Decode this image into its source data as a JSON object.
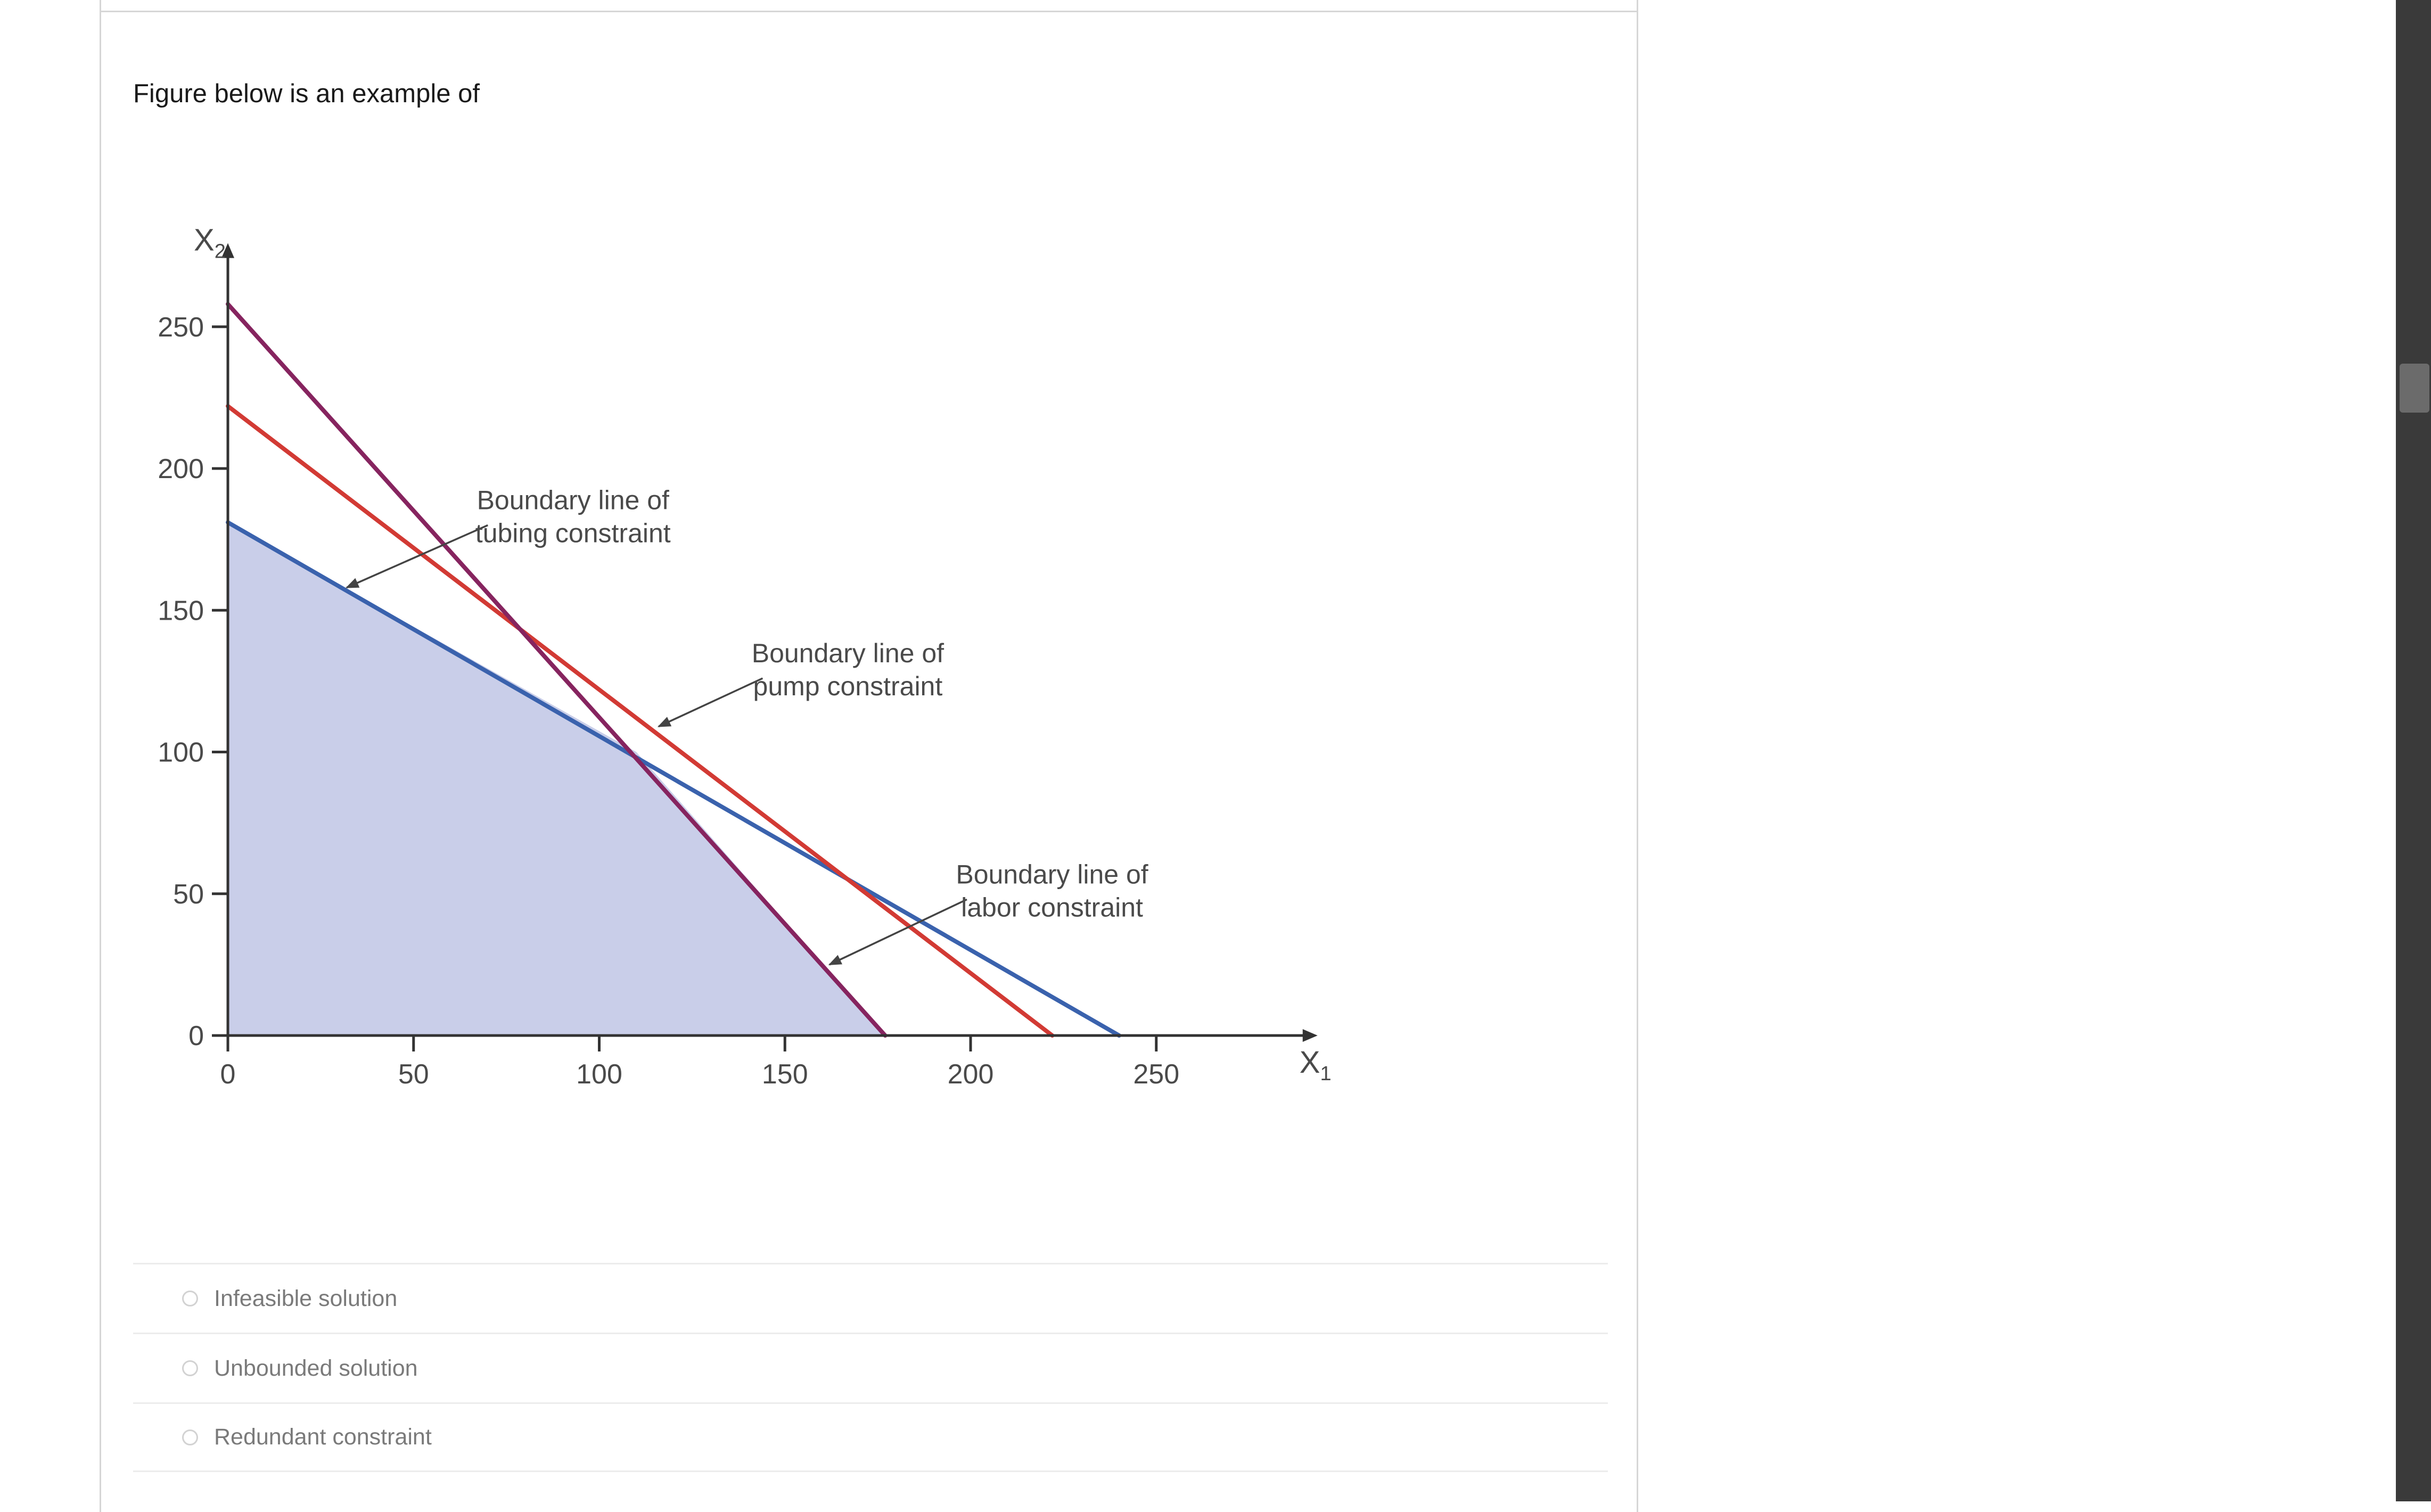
{
  "question": {
    "text": "Figure below is an example of"
  },
  "chart_data": {
    "type": "line",
    "xlabel": "X",
    "xlabel_sub": "1",
    "ylabel": "X",
    "ylabel_sub": "2",
    "xlim": [
      0,
      290
    ],
    "ylim": [
      0,
      275
    ],
    "x_ticks": [
      0,
      50,
      100,
      150,
      200,
      250
    ],
    "y_ticks": [
      0,
      50,
      100,
      150,
      200,
      250
    ],
    "grid": false,
    "legend": "none",
    "series": [
      {
        "label_line1": "Boundary line of",
        "label_line2": "tubing constraint",
        "color": "#3a62ad",
        "x": [
          0,
          240
        ],
        "y": [
          181,
          0
        ]
      },
      {
        "label_line1": "Boundary line of",
        "label_line2": "pump constraint",
        "color": "#d23a34",
        "x": [
          0,
          222
        ],
        "y": [
          222,
          0
        ]
      },
      {
        "label_line1": "Boundary line of",
        "label_line2": "labor constraint",
        "color": "#86245f",
        "x": [
          0,
          177
        ],
        "y": [
          258,
          0
        ]
      }
    ],
    "feasible_region": {
      "color": "#c9cee9",
      "x": [
        0,
        0,
        110,
        177
      ],
      "y": [
        0,
        181,
        100,
        0
      ]
    },
    "annotation_points": [
      {
        "x": [
          32,
          70
        ],
        "y": [
          158,
          180
        ]
      },
      {
        "x": [
          116,
          144
        ],
        "y": [
          109,
          126
        ]
      },
      {
        "x": [
          162,
          199
        ],
        "y": [
          25,
          48
        ]
      }
    ]
  },
  "answers": [
    {
      "label": "Infeasible solution"
    },
    {
      "label": "Unbounded solution"
    },
    {
      "label": "Redundant constraint"
    }
  ],
  "colors": {
    "axis": "#333333",
    "annotation": "#444444"
  }
}
